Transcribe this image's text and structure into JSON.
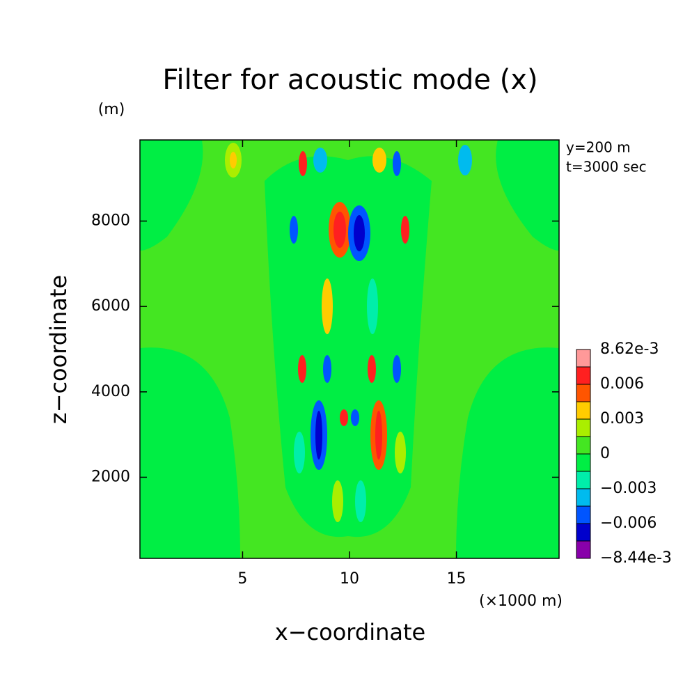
{
  "chart_data": {
    "type": "contour",
    "title": "Filter for acoustic mode (x)",
    "y_unit": "(m)",
    "x_unit": "(×1000 m)",
    "xlabel": "x−coordinate",
    "ylabel": "z−coordinate",
    "annotations": [
      "y=200 m",
      "t=3000 sec"
    ],
    "xlim": [
      0.2,
      19.8
    ],
    "ylim": [
      100,
      9900
    ],
    "xticks": [
      5,
      10,
      15
    ],
    "yticks": [
      2000,
      4000,
      6000,
      8000
    ],
    "colorbar": {
      "levels": [
        -0.00844,
        -0.0075,
        -0.006,
        -0.0045,
        -0.003,
        -0.0015,
        0,
        0.0015,
        0.003,
        0.0045,
        0.006,
        0.0075,
        0.00862
      ],
      "colors": [
        "#8800aa",
        "#0000cc",
        "#0055ff",
        "#00bbee",
        "#00eeaa",
        "#00ee44",
        "#44e622",
        "#aaee00",
        "#ffcc00",
        "#ff5500",
        "#ff2020",
        "#ff9999"
      ],
      "ticks": [
        {
          "value": -0.00844,
          "label": "−8.44e-3"
        },
        {
          "value": -0.006,
          "label": "−0.006"
        },
        {
          "value": -0.003,
          "label": "−0.003"
        },
        0,
        0.003,
        0.006,
        {
          "value": 0.00862,
          "label": "8.62e-3"
        }
      ]
    }
  }
}
